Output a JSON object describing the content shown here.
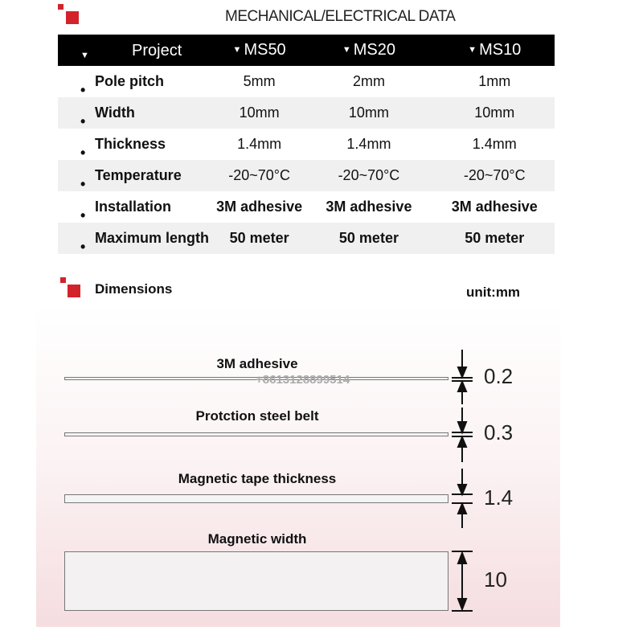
{
  "header": {
    "title": "MECHANICAL/ELECTRICAL DATA"
  },
  "table": {
    "columns": [
      "Project",
      "MS50",
      "MS20",
      "MS10"
    ],
    "rows": [
      {
        "label": "Pole pitch",
        "values": [
          "5mm",
          "2mm",
          "1mm"
        ]
      },
      {
        "label": "Width",
        "values": [
          "10mm",
          "10mm",
          "10mm"
        ]
      },
      {
        "label": "Thickness",
        "values": [
          "1.4mm",
          "1.4mm",
          "1.4mm"
        ]
      },
      {
        "label": "Temperature",
        "values": [
          "-20~70°C",
          "-20~70°C",
          "-20~70°C"
        ]
      },
      {
        "label": "Installation",
        "values": [
          "3M adhesive",
          "3M adhesive",
          "3M adhesive"
        ]
      },
      {
        "label": "Maximum length",
        "values": [
          "50 meter",
          "50 meter",
          "50 meter"
        ]
      }
    ]
  },
  "dimensions": {
    "title": "Dimensions",
    "unit": "unit:mm",
    "watermark": "+8613128899514",
    "layers": [
      {
        "label": "3M adhesive",
        "value": "0.2"
      },
      {
        "label": "Protction steel belt",
        "value": "0.3"
      },
      {
        "label": "Magnetic tape thickness",
        "value": "1.4"
      },
      {
        "label": "Magnetic width",
        "value": "10"
      }
    ]
  },
  "colors": {
    "accent": "#d2232a",
    "header_bg": "#000000"
  }
}
